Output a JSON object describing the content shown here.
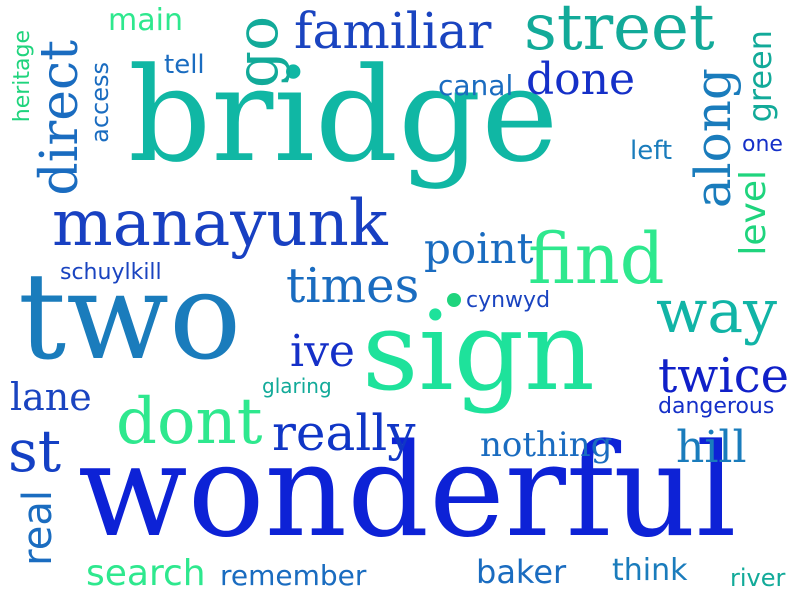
{
  "words": {
    "bridge": "bridge",
    "two": "two",
    "sign": "sign",
    "wonderful": "wonderful",
    "manayunk": "manayunk",
    "find": "find",
    "street": "street",
    "familiar": "familiar",
    "go": "go",
    "direct": "direct",
    "main": "main",
    "tell": "tell",
    "heritage": "heritage",
    "access": "access",
    "canal": "canal",
    "done": "done",
    "along": "along",
    "green": "green",
    "left": "left",
    "one": "one",
    "level": "level",
    "point": "point",
    "times": "times",
    "schuylkill": "schuylkill",
    "cynwyd": "cynwyd",
    "way": "way",
    "ive": "ive",
    "glaring": "glaring",
    "twice": "twice",
    "dangerous": "dangerous",
    "lane": "lane",
    "dont": "dont",
    "really": "really",
    "nothing": "nothing",
    "hill": "hill",
    "st": "st",
    "real": "real",
    "search": "search",
    "remember": "remember",
    "baker": "baker",
    "think": "think",
    "river": "river"
  },
  "colors": [
    "#0d21d4",
    "#1433c8",
    "#0f6fc0",
    "#08a0a0",
    "#12c4a0",
    "#1fd47d",
    "#2ef08c"
  ]
}
